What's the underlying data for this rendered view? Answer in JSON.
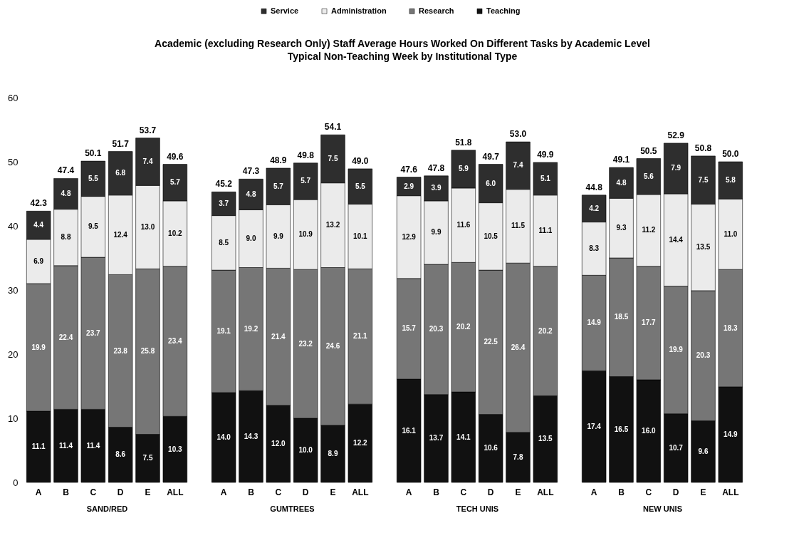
{
  "chart_data": [
    {
      "type": "other",
      "title": "Academic (excluding Research Only) Staff Average Hours Worked On Different Tasks  by Academic Level",
      "subtitle": "Typical Non-Teaching Week  by Institutional Type"
    },
    {
      "type": "bar",
      "xlabel": "SAND/RED",
      "categories": [
        "A",
        "B",
        "C",
        "D",
        "E",
        "ALL"
      ],
      "stacked": true,
      "ylim": [
        0,
        60
      ],
      "yticks": [
        0,
        10,
        20,
        30,
        40,
        50,
        60
      ],
      "grid": false,
      "legend": "top",
      "series": [
        {
          "name": "Teaching",
          "color": "#111111",
          "values": [
            11.1,
            11.4,
            11.4,
            8.6,
            7.5,
            10.3
          ],
          "value_labels": [
            "11.1",
            "11.4",
            "11.4",
            "8.6",
            "7.5",
            "10.3"
          ]
        },
        {
          "name": "Research",
          "color": "#767676",
          "values": [
            19.9,
            22.4,
            23.7,
            23.8,
            25.8,
            23.4
          ],
          "value_labels": [
            "19.9",
            "22.4",
            "23.7",
            "23.8",
            "25.8",
            "23.4"
          ]
        },
        {
          "name": "Administration",
          "color": "#ebebeb",
          "values": [
            6.9,
            8.8,
            9.5,
            12.4,
            13.0,
            10.2
          ],
          "value_labels": [
            "6.9",
            "8.8",
            "9.5",
            "12.4",
            "13.0",
            "10.2"
          ]
        },
        {
          "name": "Service",
          "color": "#2e2e2e",
          "values": [
            4.4,
            4.8,
            5.5,
            6.8,
            7.4,
            5.7
          ],
          "value_labels": [
            "4.4",
            "4.8",
            "5.5",
            "6.8",
            "7.4",
            "5.7"
          ]
        }
      ],
      "totals": [
        "42.3",
        "47.4",
        "50.1",
        "51.7",
        "53.7",
        "49.6"
      ]
    },
    {
      "type": "bar",
      "xlabel": "GUMTREES",
      "categories": [
        "A",
        "B",
        "C",
        "D",
        "E",
        "ALL"
      ],
      "stacked": true,
      "ylim": [
        0,
        60
      ],
      "yticks": [
        0,
        10,
        20,
        30,
        40,
        50,
        60
      ],
      "tick_labels": "x",
      "grid": false,
      "series": [
        {
          "name": "Teaching",
          "color": "#111111",
          "values": [
            14.0,
            14.3,
            12.0,
            10.0,
            8.9,
            12.2
          ],
          "value_labels": [
            "14.0",
            "14.3",
            "12.0",
            "10.0",
            "8.9",
            "12.2"
          ]
        },
        {
          "name": "Research",
          "color": "#767676",
          "values": [
            19.1,
            19.2,
            21.4,
            23.2,
            24.6,
            21.1
          ],
          "value_labels": [
            "19.1",
            "19.2",
            "21.4",
            "23.2",
            "24.6",
            "21.1"
          ]
        },
        {
          "name": "Administration",
          "color": "#ebebeb",
          "values": [
            8.5,
            9.0,
            9.9,
            10.9,
            13.2,
            10.1
          ],
          "value_labels": [
            "8.5",
            "9.0",
            "9.9",
            "10.9",
            "13.2",
            "10.1"
          ]
        },
        {
          "name": "Service",
          "color": "#2e2e2e",
          "values": [
            3.7,
            4.8,
            5.7,
            5.7,
            7.5,
            5.5
          ],
          "value_labels": [
            "3.7",
            "4.8",
            "5.7",
            "5.7",
            "7.5",
            "5.5"
          ]
        }
      ],
      "totals": [
        "45.2",
        "47.3",
        "48.9",
        "49.8",
        "54.1",
        "49.0"
      ]
    },
    {
      "type": "bar",
      "xlabel": "TECH UNIS",
      "categories": [
        "A",
        "B",
        "C",
        "D",
        "E",
        "ALL"
      ],
      "stacked": true,
      "ylim": [
        0,
        60
      ],
      "yticks": [
        0,
        10,
        20,
        30,
        40,
        50,
        60
      ],
      "tick_labels": "x",
      "grid": false,
      "series": [
        {
          "name": "Teaching",
          "color": "#111111",
          "values": [
            16.1,
            13.7,
            14.1,
            10.6,
            7.8,
            13.5
          ],
          "value_labels": [
            "16.1",
            "13.7",
            "14.1",
            "10.6",
            "7.8",
            "13.5"
          ]
        },
        {
          "name": "Research",
          "color": "#767676",
          "values": [
            15.7,
            20.3,
            20.2,
            22.5,
            26.4,
            20.2
          ],
          "value_labels": [
            "15.7",
            "20.3",
            "20.2",
            "22.5",
            "26.4",
            "20.2"
          ]
        },
        {
          "name": "Administration",
          "color": "#ebebeb",
          "values": [
            12.9,
            9.9,
            11.6,
            10.5,
            11.5,
            11.1
          ],
          "value_labels": [
            "12.9",
            "9.9",
            "11.6",
            "10.5",
            "11.5",
            "11.1"
          ]
        },
        {
          "name": "Service",
          "color": "#2e2e2e",
          "values": [
            2.9,
            3.9,
            5.9,
            6.0,
            7.4,
            5.1
          ],
          "value_labels": [
            "2.9",
            "3.9",
            "5.9",
            "6.0",
            "7.4",
            "5.1"
          ]
        }
      ],
      "totals": [
        "47.6",
        "47.8",
        "51.8",
        "49.7",
        "53.0",
        "49.9"
      ]
    },
    {
      "type": "bar",
      "xlabel": "NEW UNIS",
      "categories": [
        "A",
        "B",
        "C",
        "D",
        "E",
        "ALL"
      ],
      "stacked": true,
      "ylim": [
        0,
        60
      ],
      "yticks": [
        0,
        10,
        20,
        30,
        40,
        50,
        60
      ],
      "tick_labels": "x",
      "grid": false,
      "series": [
        {
          "name": "Teaching",
          "color": "#111111",
          "values": [
            17.4,
            16.5,
            16.0,
            10.7,
            9.6,
            14.9
          ],
          "value_labels": [
            "17.4",
            "16.5",
            "16.0",
            "10.7",
            "9.6",
            "14.9"
          ]
        },
        {
          "name": "Research",
          "color": "#767676",
          "values": [
            14.9,
            18.5,
            17.7,
            19.9,
            20.3,
            18.3
          ],
          "value_labels": [
            "14.9",
            "18.5",
            "17.7",
            "19.9",
            "20.3",
            "18.3"
          ]
        },
        {
          "name": "Administration",
          "color": "#ebebeb",
          "values": [
            8.3,
            9.3,
            11.2,
            14.4,
            13.5,
            11.0
          ],
          "value_labels": [
            "8.3",
            "9.3",
            "11.2",
            "14.4",
            "13.5",
            "11.0"
          ]
        },
        {
          "name": "Service",
          "color": "#2e2e2e",
          "values": [
            4.2,
            4.8,
            5.6,
            7.9,
            7.5,
            5.8
          ],
          "value_labels": [
            "4.2",
            "4.8",
            "5.6",
            "7.9",
            "7.5",
            "5.8"
          ]
        }
      ],
      "totals": [
        "44.8",
        "49.1",
        "50.5",
        "52.9",
        "50.8",
        "50.0"
      ]
    }
  ]
}
